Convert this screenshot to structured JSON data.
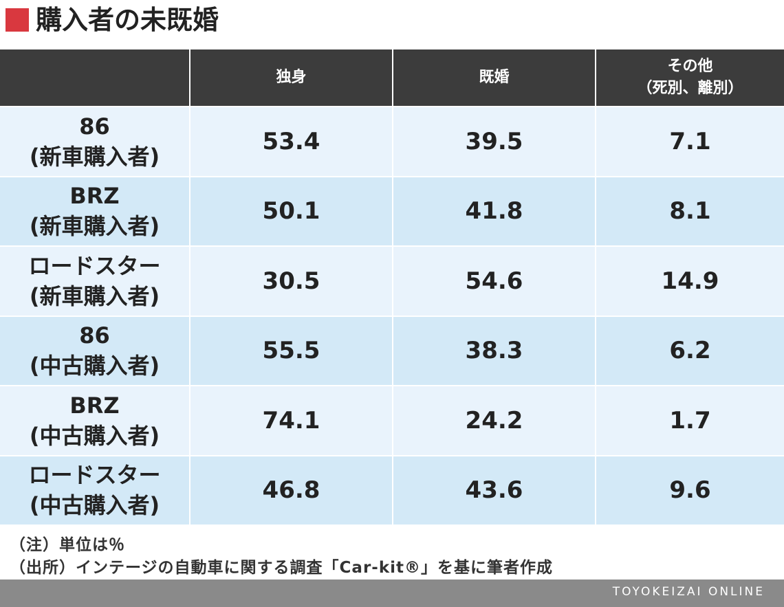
{
  "header": {
    "title": "購入者の未既婚"
  },
  "table": {
    "columns": [
      [
        "独身"
      ],
      [
        "既婚"
      ],
      [
        "その他",
        "（死別、離別）"
      ]
    ],
    "rows": [
      {
        "label": [
          "86",
          "(新車購入者)"
        ],
        "values": [
          53.4,
          39.5,
          7.1
        ]
      },
      {
        "label": [
          "BRZ",
          "(新車購入者)"
        ],
        "values": [
          50.1,
          41.8,
          8.1
        ]
      },
      {
        "label": [
          "ロードスター",
          "(新車購入者)"
        ],
        "values": [
          30.5,
          54.6,
          14.9
        ]
      },
      {
        "label": [
          "86",
          "(中古購入者)"
        ],
        "values": [
          55.5,
          38.3,
          6.2
        ]
      },
      {
        "label": [
          "BRZ",
          "(中古購入者)"
        ],
        "values": [
          74.1,
          24.2,
          1.7
        ]
      },
      {
        "label": [
          "ロードスター",
          "(中古購入者)"
        ],
        "values": [
          46.8,
          43.6,
          9.6
        ]
      }
    ]
  },
  "notes": [
    "（注）単位は％",
    "（出所）インテージの自動車に関する調査「Car-kit®」を基に筆者作成"
  ],
  "footer": {
    "brand": "TOYOKEIZAI ONLINE"
  }
}
